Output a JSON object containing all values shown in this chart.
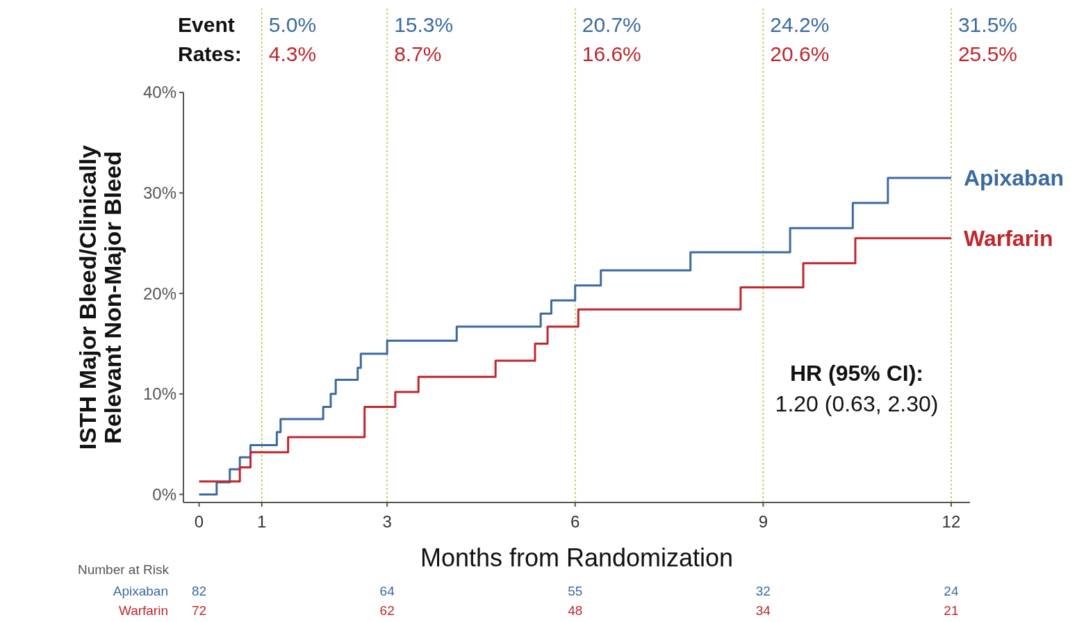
{
  "chart_data": {
    "type": "step",
    "xlabel": "Months from Randomization",
    "ylabel": "ISTH Major Bleed/Clinically\nRelevant Non-Major Bleed",
    "xlim": [
      -0.25,
      12.3
    ],
    "xticks": [
      0,
      1,
      3,
      6,
      9,
      12
    ],
    "ylim": [
      -0.8,
      40
    ],
    "yticks": [
      {
        "value": 0,
        "label": "0%"
      },
      {
        "value": 10,
        "label": "10%"
      },
      {
        "value": 20,
        "label": "20%"
      },
      {
        "value": 30,
        "label": "30%"
      },
      {
        "value": 40,
        "label": "40%"
      }
    ],
    "grid": false,
    "legend": false,
    "marker": "none",
    "line_style": "solid",
    "series": [
      {
        "name": "Apixaban",
        "color": "#3b6aa0",
        "x": [
          0,
          0.28,
          0.49,
          0.65,
          0.82,
          1.24,
          1.3,
          1.98,
          2.1,
          2.18,
          2.53,
          2.58,
          3.0,
          4.11,
          5.45,
          5.62,
          6.0,
          6.41,
          7.84,
          9.43,
          10.43,
          10.99,
          12
        ],
        "values": [
          0,
          1.2,
          2.5,
          3.7,
          4.9,
          6.2,
          7.5,
          8.7,
          10.0,
          11.4,
          12.6,
          14.0,
          15.3,
          16.7,
          18.0,
          19.3,
          20.8,
          22.3,
          24.1,
          26.5,
          29.0,
          31.5,
          31.5
        ]
      },
      {
        "name": "Warfarin",
        "color": "#c0272d",
        "x": [
          0,
          0.65,
          0.82,
          1.42,
          2.64,
          3.13,
          3.5,
          4.73,
          5.36,
          5.56,
          6.05,
          8.64,
          9.64,
          10.47,
          12
        ],
        "values": [
          1.3,
          2.7,
          4.2,
          5.7,
          8.7,
          10.2,
          11.7,
          13.3,
          15.0,
          16.7,
          18.4,
          20.6,
          23.0,
          25.5,
          25.5
        ]
      }
    ],
    "ref_lines": [
      {
        "axis": "x",
        "value": 1,
        "color": "#b5c24a",
        "line_style": "dotted"
      },
      {
        "axis": "x",
        "value": 3,
        "color": "#b5c24a",
        "line_style": "dotted"
      },
      {
        "axis": "x",
        "value": 6,
        "color": "#b5c24a",
        "line_style": "dotted"
      },
      {
        "axis": "x",
        "value": 9,
        "color": "#b5c24a",
        "line_style": "dotted"
      },
      {
        "axis": "x",
        "value": 12,
        "color": "#b5c24a",
        "line_style": "dotted"
      }
    ],
    "annotations": [
      "Event\nRates:",
      "5.0%",
      "15.3%",
      "20.7%",
      "24.2%",
      "31.5%",
      "4.3%",
      "8.7%",
      "16.6%",
      "20.6%",
      "25.5%",
      "HR (95% CI):\n1.20 (0.63, 2.30)",
      "Number at Risk",
      "82",
      "64",
      "55",
      "32",
      "24",
      "72",
      "62",
      "48",
      "34",
      "21"
    ]
  }
}
